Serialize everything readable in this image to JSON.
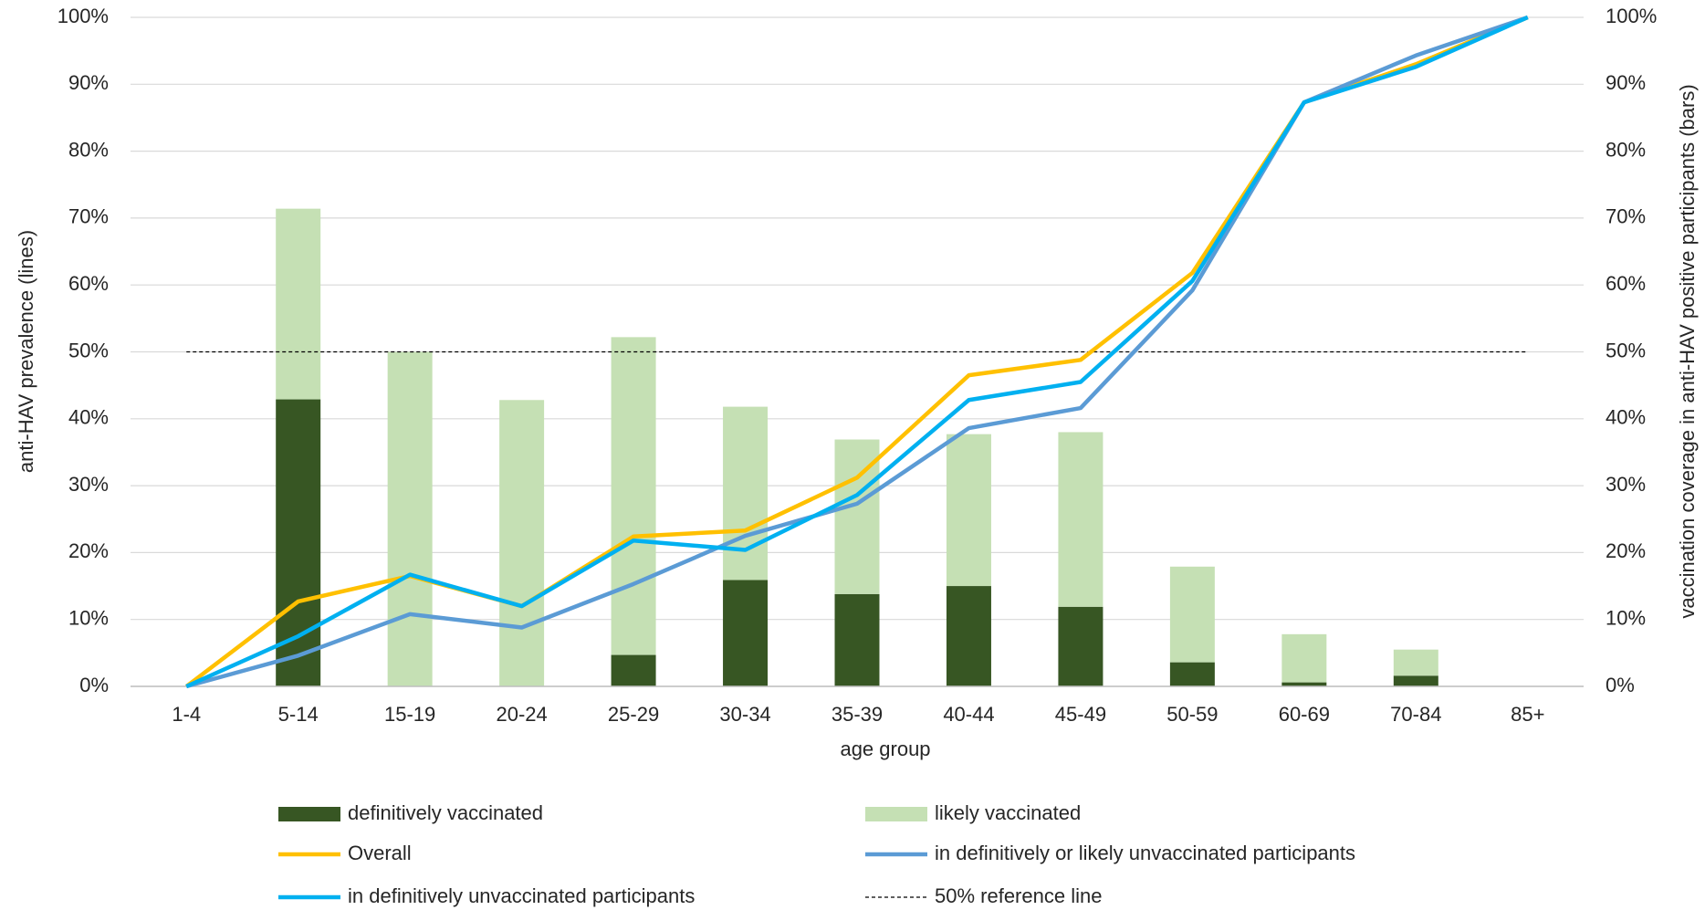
{
  "chart_data": {
    "type": "bar",
    "x_label": "age group",
    "y_label": "anti-HAV prevalence (lines)",
    "y2_label": "vaccination coverage in anti-HAV positive participants (bars)",
    "categories": [
      "1-4",
      "5-14",
      "15-19",
      "20-24",
      "25-29",
      "30-34",
      "35-39",
      "40-44",
      "45-49",
      "50-59",
      "60-69",
      "70-84",
      "85+"
    ],
    "ylim": [
      0,
      100
    ],
    "yticks": [
      {
        "value": 0,
        "label": "0%"
      },
      {
        "value": 10,
        "label": "10%"
      },
      {
        "value": 20,
        "label": "20%"
      },
      {
        "value": 30,
        "label": "30%"
      },
      {
        "value": 40,
        "label": "40%"
      },
      {
        "value": 50,
        "label": "50%"
      },
      {
        "value": 60,
        "label": "60%"
      },
      {
        "value": 70,
        "label": "70%"
      },
      {
        "value": 80,
        "label": "80%"
      },
      {
        "value": 90,
        "label": "90%"
      },
      {
        "value": 100,
        "label": "100%"
      }
    ],
    "y2lim": [
      0,
      100
    ],
    "y2ticks": [
      {
        "value": 0,
        "label": "0%"
      },
      {
        "value": 10,
        "label": "10%"
      },
      {
        "value": 20,
        "label": "20%"
      },
      {
        "value": 30,
        "label": "30%"
      },
      {
        "value": 40,
        "label": "40%"
      },
      {
        "value": 50,
        "label": "50%"
      },
      {
        "value": 60,
        "label": "60%"
      },
      {
        "value": 70,
        "label": "70%"
      },
      {
        "value": 80,
        "label": "80%"
      },
      {
        "value": 90,
        "label": "90%"
      },
      {
        "value": 100,
        "label": "100%"
      }
    ],
    "grid": true,
    "stacked": true,
    "series": [
      {
        "name": "definitively vaccinated",
        "type": "bar",
        "axis": "y2",
        "color": "#375623",
        "values": [
          0,
          42.9,
          0,
          0,
          4.7,
          15.9,
          13.8,
          15.0,
          11.9,
          3.6,
          0.6,
          1.6,
          0
        ]
      },
      {
        "name": "likely vaccinated",
        "type": "bar",
        "axis": "y2",
        "color": "#c5e0b4",
        "values": [
          0,
          28.5,
          50.0,
          42.8,
          47.5,
          25.9,
          23.1,
          22.7,
          26.1,
          14.3,
          7.2,
          3.9,
          0
        ]
      },
      {
        "name": "Overall",
        "type": "line",
        "color": "#ffc000",
        "values": [
          0,
          12.7,
          16.5,
          12.0,
          22.4,
          23.3,
          31.2,
          46.5,
          48.8,
          61.8,
          87.3,
          93.0,
          100
        ]
      },
      {
        "name": "in definitively or likely unvaccinated participants",
        "type": "line",
        "color": "#5b9bd5",
        "values": [
          0,
          4.6,
          10.8,
          8.8,
          15.3,
          22.5,
          27.3,
          38.6,
          41.6,
          59.2,
          87.3,
          94.3,
          100
        ]
      },
      {
        "name": "in definitively unvaccinated participants",
        "type": "line",
        "color": "#00b0f0",
        "values": [
          0,
          7.5,
          16.7,
          12.0,
          21.8,
          20.4,
          28.6,
          42.8,
          45.5,
          60.6,
          87.3,
          92.6,
          100
        ]
      }
    ],
    "reference_line": {
      "value": 50,
      "label": "50% reference line"
    }
  }
}
